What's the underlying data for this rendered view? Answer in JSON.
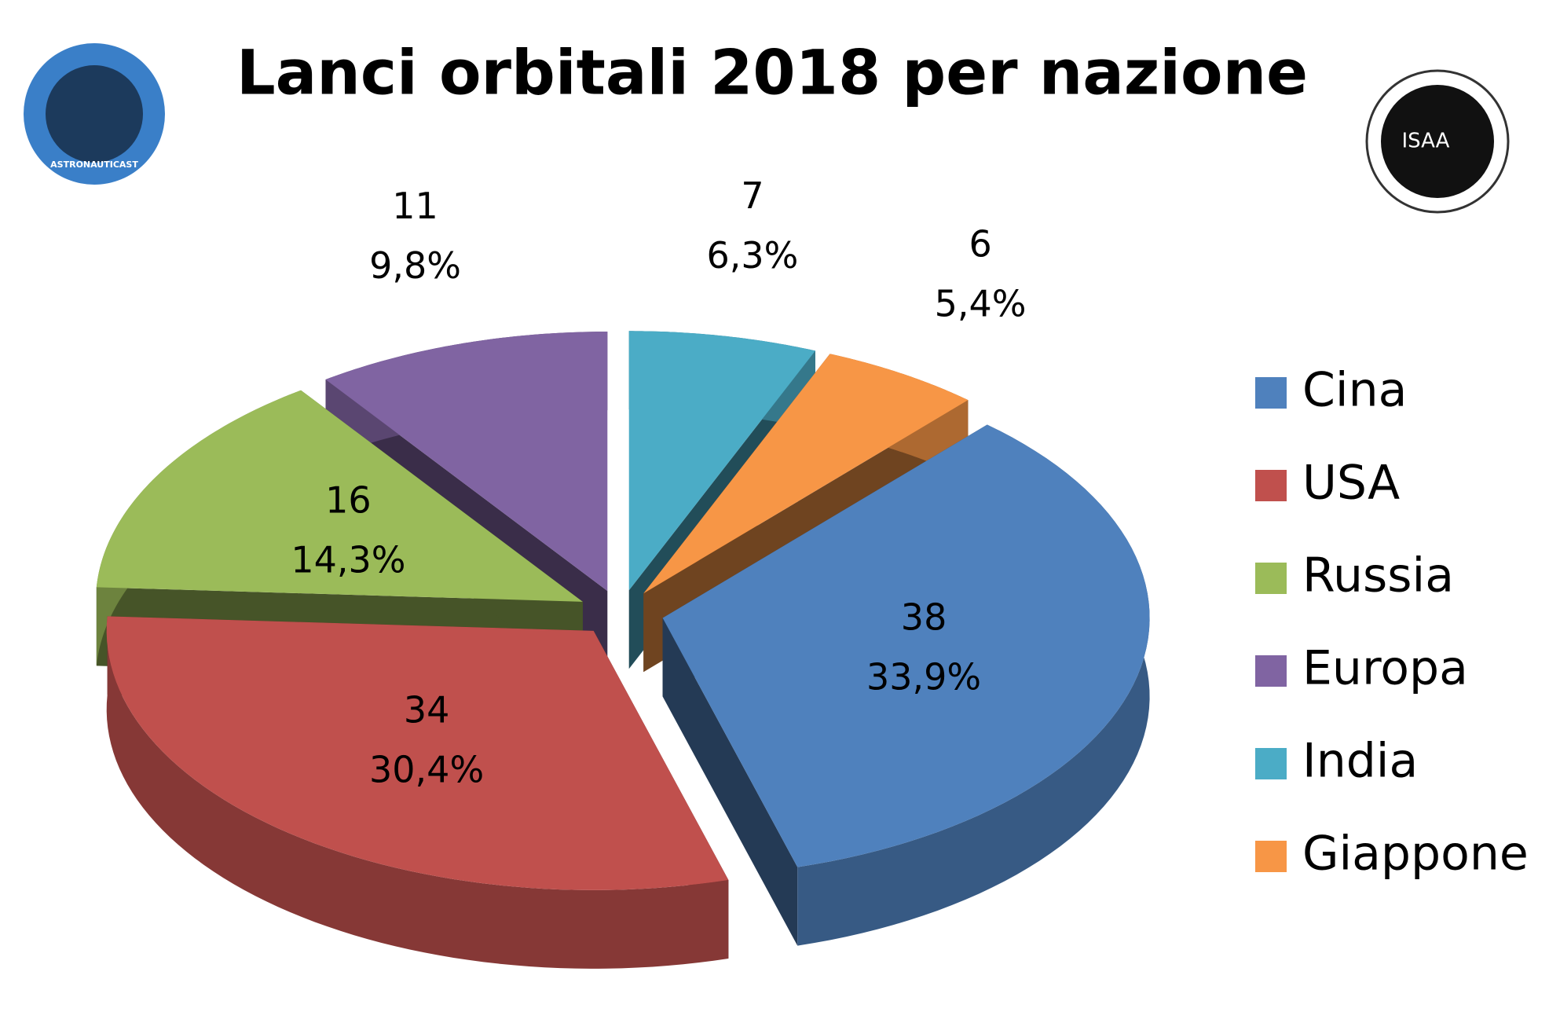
{
  "chart_data": {
    "type": "pie3d",
    "title": "Lanci orbitali 2018 per nazione",
    "logos": [
      "ASTRONAUTICAST",
      "ISAA"
    ],
    "categories": [
      "Cina",
      "USA",
      "Russia",
      "Europa",
      "India",
      "Giappone"
    ],
    "values": [
      38,
      34,
      16,
      11,
      7,
      6
    ],
    "percent_labels": [
      "33,9%",
      "30,4%",
      "14,3%",
      "9,8%",
      "6,3%",
      "5,4%"
    ],
    "colors": [
      "#4f81bd",
      "#c0504d",
      "#9bbb59",
      "#8064a2",
      "#4bacc6",
      "#f79646"
    ],
    "legend": "right"
  }
}
